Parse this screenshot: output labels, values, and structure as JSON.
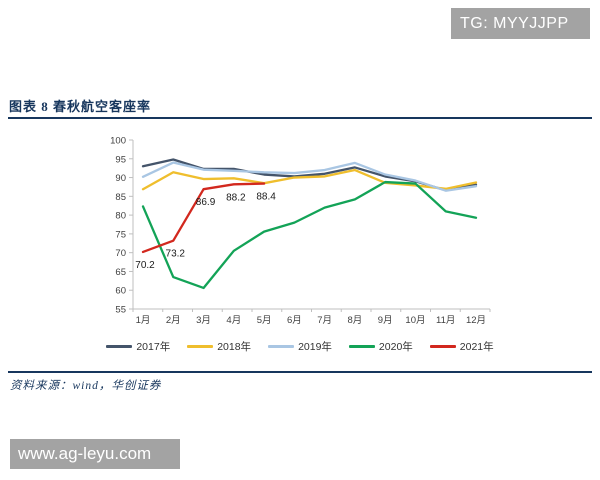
{
  "page": {
    "background": "#FFFFFF"
  },
  "watermark_top": {
    "text": "TG: MYYJJPP",
    "bg": "#A3A3A3",
    "fg": "#FFFFFF"
  },
  "watermark_bottom": {
    "text": "www.ag-leyu.com",
    "bg": "#A3A3A3",
    "fg": "#FFFFFF"
  },
  "figure": {
    "title": "图表 8  春秋航空客座率",
    "source": "资料来源：wind，华创证券",
    "accent_color": "#17365D"
  },
  "chart_data": {
    "type": "line",
    "title": "春秋航空客座率",
    "categories": [
      "1月",
      "2月",
      "3月",
      "4月",
      "5月",
      "6月",
      "7月",
      "8月",
      "9月",
      "10月",
      "11月",
      "12月"
    ],
    "series": [
      {
        "name": "2017年",
        "color": "#44546A",
        "values": [
          93.0,
          94.8,
          92.3,
          92.3,
          90.8,
          90.3,
          91.0,
          92.7,
          90.3,
          89.0,
          86.6,
          88.1
        ]
      },
      {
        "name": "2018年",
        "color": "#EFBE2D",
        "values": [
          86.9,
          91.4,
          89.6,
          89.8,
          88.5,
          90.0,
          90.3,
          92.0,
          88.6,
          87.9,
          87.0,
          88.7
        ]
      },
      {
        "name": "2019年",
        "color": "#A9C6E3",
        "values": [
          90.2,
          94.0,
          92.1,
          91.8,
          91.4,
          91.2,
          92.0,
          93.9,
          90.8,
          89.2,
          86.5,
          87.7
        ]
      },
      {
        "name": "2020年",
        "color": "#13A357",
        "values": [
          82.3,
          63.5,
          60.6,
          70.5,
          75.6,
          78.0,
          82.0,
          84.2,
          88.8,
          88.4,
          81.0,
          79.3
        ]
      },
      {
        "name": "2021年",
        "color": "#D2281E",
        "values": [
          70.2,
          73.2,
          86.9,
          88.2,
          88.4
        ]
      }
    ],
    "ylim": [
      55,
      100
    ],
    "ytick_step": 5,
    "yticks": [
      55,
      60,
      65,
      70,
      75,
      80,
      85,
      90,
      95,
      100
    ],
    "grid": false,
    "legend_position": "bottom",
    "axis_color": "#BFBFBF",
    "tick_label_color": "#404040",
    "data_labels": {
      "series": "2021年",
      "labels": [
        "70.2",
        "73.2",
        "86.9",
        "88.2",
        "88.4"
      ]
    }
  }
}
